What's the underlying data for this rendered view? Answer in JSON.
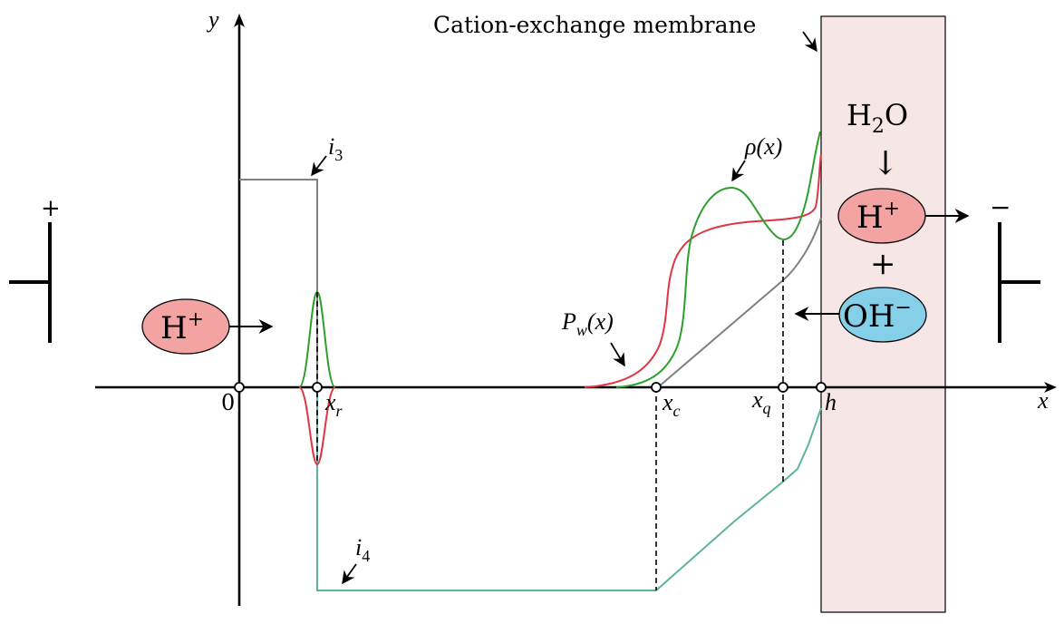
{
  "axes": {
    "x_label": "x",
    "y_label": "y",
    "origin_label": "0"
  },
  "points": {
    "x_r": {
      "base": "x",
      "sub": "r"
    },
    "x_c": {
      "base": "x",
      "sub": "c"
    },
    "x_q": {
      "base": "x",
      "sub": "q"
    },
    "h": "h"
  },
  "curve_labels": {
    "i3": {
      "base": "i",
      "sub": "3"
    },
    "i4": {
      "base": "i",
      "sub": "4"
    },
    "rho": "ρ(x)",
    "pw": {
      "base": "P",
      "sub": "w",
      "arg": "(x)"
    }
  },
  "membrane": {
    "label": "Cation-exchange membrane",
    "water": {
      "base": "H",
      "sub": "2",
      "tail": "O"
    },
    "down_arrow": "↓",
    "proton": {
      "base": "H",
      "sup": "+"
    },
    "plus": "+",
    "hydroxide": {
      "base": "OH",
      "sup": "−"
    }
  },
  "left_ion": {
    "base": "H",
    "sup": "+"
  },
  "electrodes": {
    "anode_sign": "+",
    "cathode_sign": "−"
  },
  "colors": {
    "membrane_fill": "#f6e6e6",
    "proton_fill": "#f4a3a3",
    "hydroxide_fill": "#86cfe8",
    "green_curve": "#2ca02c",
    "red_curve": "#e03545",
    "gray_curve": "#808080",
    "teal_curve": "#5fb39a"
  }
}
